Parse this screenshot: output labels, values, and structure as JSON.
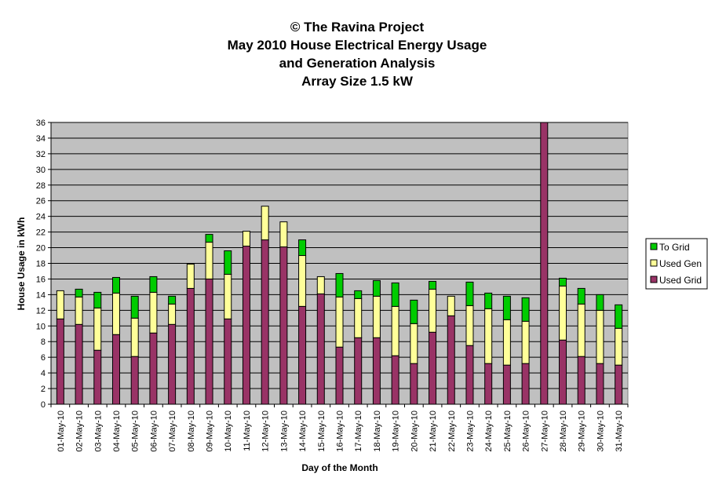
{
  "chart_data": {
    "type": "bar",
    "stacked": true,
    "title_lines": [
      "© The Ravina Project",
      "May 2010 House Electrical Energy Usage",
      "and Generation Analysis",
      "Array Size 1.5 kW"
    ],
    "xlabel": "Day of the Month",
    "ylabel": "House Usage in kWh",
    "ylim": [
      0,
      36
    ],
    "yticks": [
      0,
      2,
      4,
      6,
      8,
      10,
      12,
      14,
      16,
      18,
      20,
      22,
      24,
      26,
      28,
      30,
      32,
      34,
      36
    ],
    "grid": true,
    "legend_position": "right",
    "categories": [
      "01-May-10",
      "02-May-10",
      "03-May-10",
      "04-May-10",
      "05-May-10",
      "06-May-10",
      "07-May-10",
      "08-May-10",
      "09-May-10",
      "10-May-10",
      "11-May-10",
      "12-May-10",
      "13-May-10",
      "14-May-10",
      "15-May-10",
      "16-May-10",
      "17-May-10",
      "18-May-10",
      "19-May-10",
      "20-May-10",
      "21-May-10",
      "22-May-10",
      "23-May-10",
      "24-May-10",
      "25-May-10",
      "26-May-10",
      "27-May-10",
      "28-May-10",
      "29-May-10",
      "30-May-10",
      "31-May-10"
    ],
    "series": [
      {
        "name": "Used Grid",
        "color": "#993366",
        "values": [
          10.9,
          10.2,
          6.9,
          8.9,
          6.1,
          9.1,
          10.2,
          14.8,
          16.0,
          10.9,
          20.2,
          21.0,
          20.1,
          12.5,
          14.1,
          7.3,
          8.5,
          8.5,
          6.2,
          5.2,
          9.2,
          11.3,
          7.5,
          5.2,
          5.0,
          5.2,
          36.0,
          8.2,
          6.1,
          5.2,
          5.0
        ]
      },
      {
        "name": "Used Gen",
        "color": "#FFFF99",
        "values": [
          3.6,
          3.5,
          5.4,
          5.3,
          4.9,
          5.2,
          2.6,
          3.1,
          4.7,
          5.7,
          1.9,
          4.3,
          3.2,
          6.5,
          2.2,
          6.4,
          5.0,
          5.3,
          6.3,
          5.1,
          5.5,
          2.5,
          5.1,
          7.0,
          5.8,
          5.4,
          0.0,
          6.9,
          6.7,
          6.8,
          4.7
        ]
      },
      {
        "name": "To Grid",
        "color": "#00CC00",
        "values": [
          0.0,
          1.0,
          2.0,
          2.0,
          2.8,
          2.0,
          1.0,
          0.0,
          1.0,
          3.0,
          0.0,
          0.0,
          0.0,
          2.0,
          0.0,
          3.0,
          1.0,
          2.0,
          3.0,
          3.0,
          1.0,
          0.0,
          3.0,
          2.0,
          3.0,
          3.0,
          0.0,
          1.0,
          2.0,
          2.0,
          3.0
        ]
      }
    ],
    "plot_background": "#C0C0C0"
  }
}
